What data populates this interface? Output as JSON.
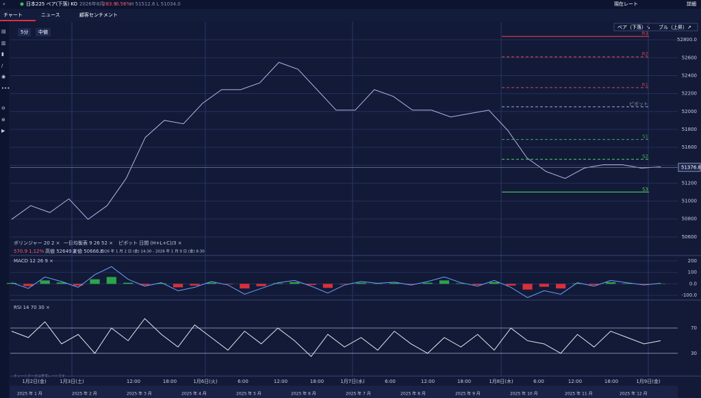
{
  "header": {
    "instrument": "日本225 ベア(下落) KO",
    "expiry": "2026年8月",
    "change": "283.9",
    "change_pct": "0.56%",
    "high_low": "H 51512.6 L 51034.0",
    "current_rate": "現在レート",
    "details": "詳細"
  },
  "tabs": [
    "チャート",
    "ニュース",
    "顧客センチメント"
  ],
  "toolbar": {
    "interval": "5分",
    "price_type": "中値",
    "bear": "ベア（下落）↘",
    "bull": "ブル（上昇）↗"
  },
  "legend": {
    "bollinger": "ボリンジャー  20  2  ×",
    "ichimoku": "一目均衡表  9  26  52  ×",
    "pivot": "ピボット  日間  (H+L+C)/3  ×"
  },
  "stats": {
    "change": "570.9",
    "change_pct": "1.12%",
    "high": "高値 52649.2",
    "low": "安値 50666.6",
    "range": "2026 年 1 月 2 日 (金) 14:30 - 2026 年 1 月 9 日 (金) 8:30"
  },
  "disclaimer": "チャートデータは参考レートです",
  "x_labels": [
    "1月2日(金)",
    "1月3日(土)",
    "12:00",
    "18:00",
    "1月6日(火)",
    "6:00",
    "12:00",
    "18:00",
    "1月7日(水)",
    "6:00",
    "12:00",
    "18:00",
    "1月8日(木)",
    "6:00",
    "12:00",
    "18:00",
    "1月9日(金)"
  ],
  "navigator": [
    "2025 年 1 月",
    "2025 年 2 月",
    "2025 年 3 月",
    "2025 年 4 月",
    "2025 年 5 月",
    "2025 年 6 月",
    "2025 年 7 月",
    "2025 年 8 月",
    "2025 年 9 月",
    "2025 年 10 月",
    "2025 年 11 月",
    "2025 年 12 月"
  ],
  "chart_data": [
    {
      "type": "line",
      "color": "#b9b2e6",
      "values": [
        50796,
        50949,
        50872,
        51025,
        50796,
        50949,
        51253,
        51710,
        51901,
        51863,
        52091,
        52244,
        52244,
        52320,
        52549,
        52472,
        52244,
        52015,
        52015,
        52244,
        52168,
        52015,
        52015,
        51939,
        51977,
        52015,
        51787,
        51482,
        51330,
        51253,
        51368,
        51406,
        51406,
        51368,
        51383
      ],
      "ylim": [
        50400,
        53000
      ],
      "yticks": [
        50600,
        50800,
        51000,
        51200,
        51400,
        51600,
        51800,
        52000,
        52200,
        52400,
        52600,
        {
          "value": 52800,
          "label": "52800.0"
        }
      ],
      "last": 51376.8,
      "pivots": [
        {
          "label": "R3",
          "value": 52838,
          "color": "#e0404a"
        },
        {
          "label": "R2",
          "value": 52610,
          "color": "#c8404a"
        },
        {
          "label": "R1",
          "value": 52267,
          "color": "#b04050"
        },
        {
          "label": "ピボット",
          "value": 52053,
          "color": "#8890a8"
        },
        {
          "label": "S1",
          "value": 51688,
          "color": "#3f9a55"
        },
        {
          "label": "S2",
          "value": 51467,
          "color": "#48b060"
        },
        {
          "label": "S3",
          "value": 51101,
          "color": "#55cc66"
        }
      ]
    },
    {
      "type": "line",
      "title": "MACD  12  26  9  ×",
      "color": "#6fa0ff",
      "values": [
        10,
        -40,
        60,
        20,
        -30,
        80,
        150,
        40,
        -20,
        10,
        -60,
        -30,
        20,
        -10,
        -90,
        -40,
        10,
        30,
        -20,
        -80,
        -10,
        20,
        5,
        15,
        -10,
        20,
        60,
        10,
        -20,
        30,
        -30,
        -120,
        -60,
        -90,
        10,
        -20,
        30,
        10,
        -10,
        5
      ],
      "histogram": [
        8,
        -20,
        30,
        12,
        -15,
        40,
        60,
        10,
        -12,
        5,
        -30,
        -15,
        10,
        -5,
        -40,
        -20,
        6,
        15,
        -10,
        -35,
        -5,
        10,
        3,
        8,
        -5,
        10,
        30,
        5,
        -10,
        15,
        -15,
        -50,
        -25,
        -40,
        5,
        -10,
        15,
        5,
        -5,
        3
      ],
      "ylim": [
        -135,
        235
      ],
      "yticks": [
        {
          "value": -100,
          "label": "-100.0"
        },
        {
          "value": 0,
          "label": "0.0"
        },
        100,
        200
      ]
    },
    {
      "type": "line",
      "title": "RSI  14  70  30  ×",
      "color": "#e8e8ee",
      "values": [
        65,
        55,
        80,
        45,
        60,
        30,
        70,
        50,
        85,
        60,
        40,
        75,
        55,
        35,
        65,
        45,
        70,
        50,
        25,
        60,
        40,
        55,
        35,
        65,
        45,
        30,
        55,
        40,
        60,
        35,
        70,
        50,
        45,
        30,
        60,
        40,
        65,
        55,
        45,
        50
      ],
      "ylim": [
        -5,
        109
      ],
      "yticks": [
        30,
        70
      ]
    }
  ]
}
